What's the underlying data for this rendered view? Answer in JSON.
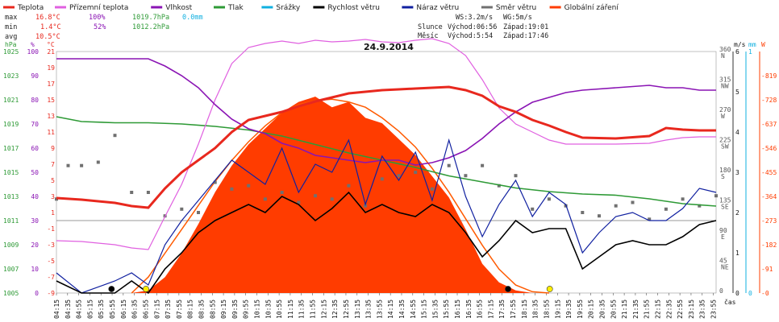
{
  "chart_data": {
    "type": "line",
    "title": "24.9.2014",
    "legend": [
      {
        "name": "Teplota",
        "color": "#e8281e"
      },
      {
        "name": "Přízemní teplota",
        "color": "#e060e0"
      },
      {
        "name": "Vlhkost",
        "color": "#8a14b4"
      },
      {
        "name": "Tlak",
        "color": "#2e9a36"
      },
      {
        "name": "Srážky",
        "color": "#10b0e0"
      },
      {
        "name": "Rychlost větru",
        "color": "#000000"
      },
      {
        "name": "Náraz větru",
        "color": "#1020a0"
      },
      {
        "name": "Směr větru",
        "color": "#707070"
      },
      {
        "name": "Globální záření",
        "color": "#ff3c00"
      }
    ],
    "stats": {
      "max": {
        "label": "max",
        "temp": "16.8°C",
        "hum": "100%",
        "pres": "1019.7hPa",
        "rain": "0.0mm"
      },
      "min": {
        "label": "min",
        "temp": "1.4°C",
        "hum": "52%",
        "pres": "1012.2hPa"
      },
      "avg": {
        "label": "avg",
        "temp": "10.5°C"
      }
    },
    "info": {
      "ws": "WS:3.2m/s",
      "wg": "WG:5m/s",
      "sun_label": "Slunce",
      "sun_rise": "Východ:06:56",
      "sun_set": "Západ:19:01",
      "moon_label": "Měsíc",
      "moon_rise": "Východ:5:54",
      "moon_set": "Západ:17:46"
    },
    "axes": {
      "pressure": {
        "unit": "hPa",
        "ticks": [
          "1025",
          "1023",
          "1021",
          "1019",
          "1017",
          "1015",
          "1013",
          "1011",
          "1009",
          "1007",
          "1005"
        ]
      },
      "humidity": {
        "unit": "%",
        "ticks": [
          "100",
          "90",
          "80",
          "70",
          "60",
          "50",
          "40",
          "30",
          "20",
          "10",
          "0"
        ]
      },
      "temperature": {
        "unit": "°C",
        "ticks": [
          "21",
          "19",
          "17",
          "15",
          "13",
          "11",
          "9",
          "7",
          "5",
          "3",
          "1",
          "-1",
          "-3",
          "-5",
          "-7",
          "-9"
        ]
      },
      "direction": {
        "ticks": [
          {
            "deg": "360",
            "dir": "N"
          },
          {
            "deg": "315",
            "dir": "NW"
          },
          {
            "deg": "270",
            "dir": "W"
          },
          {
            "deg": "225",
            "dir": "SW"
          },
          {
            "deg": "180",
            "dir": "S"
          },
          {
            "deg": "135",
            "dir": "SE"
          },
          {
            "deg": "90",
            "dir": "E"
          },
          {
            "deg": "45",
            "dir": "NE"
          },
          {
            "deg": "0",
            "dir": ""
          }
        ]
      },
      "speed": {
        "unit": "m/s",
        "ticks": [
          "6",
          "5",
          "4",
          "3",
          "2",
          "1",
          "0"
        ]
      },
      "rain": {
        "unit": "mm",
        "ticks": [
          "1",
          "0"
        ]
      },
      "radiation": {
        "unit": "W",
        "ticks": [
          "819",
          "728",
          "637",
          "546",
          "455",
          "364",
          "273",
          "182",
          "91",
          "0"
        ]
      },
      "time": {
        "label": "čas",
        "ticks": [
          "04:15",
          "04:35",
          "04:55",
          "05:15",
          "05:35",
          "05:55",
          "06:15",
          "06:35",
          "06:55",
          "07:15",
          "07:35",
          "07:55",
          "08:15",
          "08:35",
          "08:55",
          "09:15",
          "09:35",
          "09:55",
          "10:15",
          "10:35",
          "10:55",
          "11:15",
          "11:35",
          "11:55",
          "12:15",
          "12:35",
          "12:55",
          "13:15",
          "13:35",
          "13:55",
          "14:15",
          "14:35",
          "14:55",
          "15:15",
          "15:35",
          "15:55",
          "16:15",
          "16:35",
          "16:55",
          "17:15",
          "17:35",
          "17:55",
          "18:15",
          "18:35",
          "18:55",
          "19:15",
          "19:35",
          "19:55",
          "20:15",
          "20:35",
          "20:55",
          "21:15",
          "21:35",
          "21:55",
          "22:15",
          "22:35",
          "22:55",
          "23:15",
          "23:35",
          "23:55"
        ]
      }
    },
    "series": {
      "temperature": {
        "x": [
          4.25,
          5,
          6,
          6.5,
          7,
          7.5,
          8,
          8.5,
          9,
          9.5,
          10,
          10.5,
          11,
          11.5,
          12,
          12.5,
          13,
          13.5,
          14,
          14.5,
          15,
          15.5,
          16,
          16.5,
          17,
          17.5,
          18,
          18.5,
          19,
          19.5,
          20,
          21,
          22,
          22.5,
          23,
          23.5,
          24
        ],
        "y": [
          2.8,
          2.6,
          2.2,
          1.8,
          1.6,
          4.0,
          6.0,
          7.5,
          9.0,
          11.0,
          12.5,
          13.0,
          13.5,
          14.2,
          14.8,
          15.3,
          15.8,
          16.0,
          16.2,
          16.3,
          16.4,
          16.5,
          16.6,
          16.2,
          15.5,
          14.2,
          13.5,
          12.5,
          11.8,
          11.0,
          10.3,
          10.2,
          10.5,
          11.5,
          11.3,
          11.2,
          11.2
        ]
      },
      "ground_temperature": {
        "x": [
          4.25,
          5,
          6,
          6.5,
          7,
          7.5,
          8,
          8.5,
          9,
          9.5,
          10,
          10.5,
          11,
          11.5,
          12,
          12.5,
          13,
          13.5,
          14,
          14.5,
          15,
          15.5,
          16,
          16.5,
          17,
          17.5,
          18,
          18.5,
          19,
          19.5,
          20,
          21,
          22,
          22.5,
          23,
          23.5,
          24
        ],
        "y": [
          -2.5,
          -2.6,
          -3.0,
          -3.4,
          -3.6,
          0.5,
          4.5,
          9.5,
          15.0,
          19.5,
          21.5,
          22.0,
          22.3,
          22.0,
          22.4,
          22.2,
          22.3,
          22.5,
          22.2,
          22.1,
          22.4,
          22.6,
          22.0,
          20.5,
          17.5,
          14.0,
          12.0,
          11.0,
          10.0,
          9.5,
          9.5,
          9.5,
          9.6,
          10.0,
          10.3,
          10.4,
          10.4
        ]
      },
      "humidity": {
        "x": [
          4.25,
          5,
          6,
          6.5,
          7,
          7.5,
          8,
          8.5,
          9,
          9.5,
          10,
          10.5,
          11,
          11.5,
          12,
          12.5,
          13,
          13.5,
          14,
          14.5,
          15,
          15.5,
          16,
          16.5,
          17,
          17.5,
          18,
          18.5,
          19,
          19.5,
          20,
          21,
          22,
          22.5,
          23,
          23.5,
          24
        ],
        "y": [
          97,
          97,
          97,
          97,
          97,
          94,
          90,
          85,
          78,
          72,
          68,
          66,
          62,
          60,
          57,
          56,
          55,
          54,
          55,
          55,
          53,
          54,
          56,
          59,
          64,
          70,
          75,
          79,
          81,
          83,
          84,
          85,
          86,
          85,
          85,
          84,
          84
        ]
      },
      "pressure": {
        "x": [
          4.25,
          5,
          6,
          7,
          8,
          9,
          10,
          11,
          12,
          13,
          14,
          15,
          16,
          17,
          18,
          19,
          20,
          21,
          22,
          23,
          24
        ],
        "y": [
          1019.6,
          1019.2,
          1019.1,
          1019.1,
          1019.0,
          1018.8,
          1018.5,
          1018.0,
          1017.3,
          1016.6,
          1016.0,
          1015.4,
          1014.7,
          1014.2,
          1013.7,
          1013.4,
          1013.2,
          1013.1,
          1012.8,
          1012.4,
          1012.2
        ]
      },
      "wind_speed": {
        "x": [
          4.25,
          5,
          6,
          6.5,
          7,
          7.5,
          8,
          8.5,
          9,
          9.5,
          10,
          10.5,
          11,
          11.5,
          12,
          12.5,
          13,
          13.5,
          14,
          14.5,
          15,
          15.5,
          16,
          16.5,
          17,
          17.5,
          18,
          18.5,
          19,
          19.5,
          20,
          20.5,
          21,
          21.5,
          22,
          22.5,
          23,
          23.5,
          24
        ],
        "y": [
          0.3,
          0.0,
          0.0,
          0.3,
          0.0,
          0.6,
          1.0,
          1.5,
          1.8,
          2.0,
          2.2,
          2.0,
          2.4,
          2.2,
          1.8,
          2.1,
          2.5,
          2.0,
          2.2,
          2.0,
          1.9,
          2.2,
          2.0,
          1.5,
          0.9,
          1.3,
          1.8,
          1.5,
          1.6,
          1.6,
          0.6,
          0.9,
          1.2,
          1.3,
          1.2,
          1.2,
          1.4,
          1.7,
          1.8
        ]
      },
      "wind_gust": {
        "x": [
          4.25,
          5,
          6,
          6.5,
          7,
          7.5,
          8,
          8.5,
          9,
          9.5,
          10,
          10.5,
          11,
          11.5,
          12,
          12.5,
          13,
          13.5,
          14,
          14.5,
          15,
          15.5,
          16,
          16.5,
          17,
          17.5,
          18,
          18.5,
          19,
          19.5,
          20,
          20.5,
          21,
          21.5,
          22,
          22.5,
          23,
          23.5,
          24
        ],
        "y": [
          0.5,
          0.0,
          0.3,
          0.5,
          0.2,
          1.2,
          1.8,
          2.3,
          2.8,
          3.3,
          3.0,
          2.7,
          3.6,
          2.5,
          3.2,
          3.0,
          3.8,
          2.2,
          3.4,
          2.8,
          3.5,
          2.3,
          3.8,
          2.4,
          1.4,
          2.2,
          2.8,
          1.9,
          2.5,
          2.2,
          1.0,
          1.5,
          1.9,
          2.0,
          1.8,
          1.8,
          2.1,
          2.6,
          2.5
        ]
      },
      "wind_direction": {
        "x": [
          4.25,
          4.6,
          5,
          5.5,
          6,
          6.5,
          7,
          7.5,
          8,
          8.5,
          9,
          9.5,
          10,
          10.5,
          11,
          11.5,
          12,
          12.5,
          13,
          13.5,
          14,
          14.5,
          15,
          15.5,
          16,
          16.5,
          17,
          17.5,
          18,
          18.5,
          19,
          19.5,
          20,
          20.5,
          21,
          21.5,
          22,
          22.5,
          23,
          23.5,
          24
        ],
        "y": [
          140,
          190,
          190,
          195,
          235,
          150,
          150,
          115,
          125,
          120,
          165,
          155,
          160,
          140,
          150,
          135,
          145,
          140,
          160,
          130,
          170,
          175,
          180,
          155,
          190,
          175,
          190,
          160,
          175,
          125,
          140,
          130,
          120,
          115,
          130,
          135,
          110,
          125,
          140,
          130,
          145
        ]
      },
      "radiation": {
        "x": [
          6.5,
          7,
          7.5,
          8,
          8.5,
          9,
          9.5,
          10,
          10.5,
          11,
          11.5,
          12,
          12.5,
          13,
          13.5,
          14,
          14.5,
          15,
          15.5,
          16,
          16.5,
          17,
          17.5,
          18,
          18.5,
          19
        ],
        "y": [
          0,
          10,
          60,
          150,
          260,
          380,
          480,
          560,
          620,
          680,
          720,
          740,
          700,
          720,
          660,
          640,
          580,
          520,
          440,
          360,
          240,
          110,
          40,
          10,
          0,
          0
        ]
      },
      "radiation_clear_sky": {
        "x": [
          6.5,
          7,
          7.5,
          8,
          8.5,
          9,
          9.5,
          10,
          10.5,
          11,
          11.5,
          12,
          12.5,
          13,
          13.5,
          14,
          14.5,
          15,
          15.5,
          16,
          16.5,
          17,
          17.5,
          18,
          18.5,
          19
        ],
        "y": [
          0,
          60,
          150,
          240,
          330,
          420,
          500,
          570,
          630,
          680,
          710,
          725,
          730,
          720,
          700,
          660,
          610,
          550,
          470,
          380,
          280,
          180,
          90,
          30,
          5,
          0
        ]
      }
    },
    "markers": [
      {
        "name": "moonrise",
        "time": 5.9,
        "color": "#000000"
      },
      {
        "name": "sunrise",
        "time": 6.93,
        "color": "#ffee00"
      },
      {
        "name": "moonset",
        "time": 17.77,
        "color": "#000000"
      },
      {
        "name": "sunset",
        "time": 19.02,
        "color": "#ffee00"
      }
    ]
  }
}
